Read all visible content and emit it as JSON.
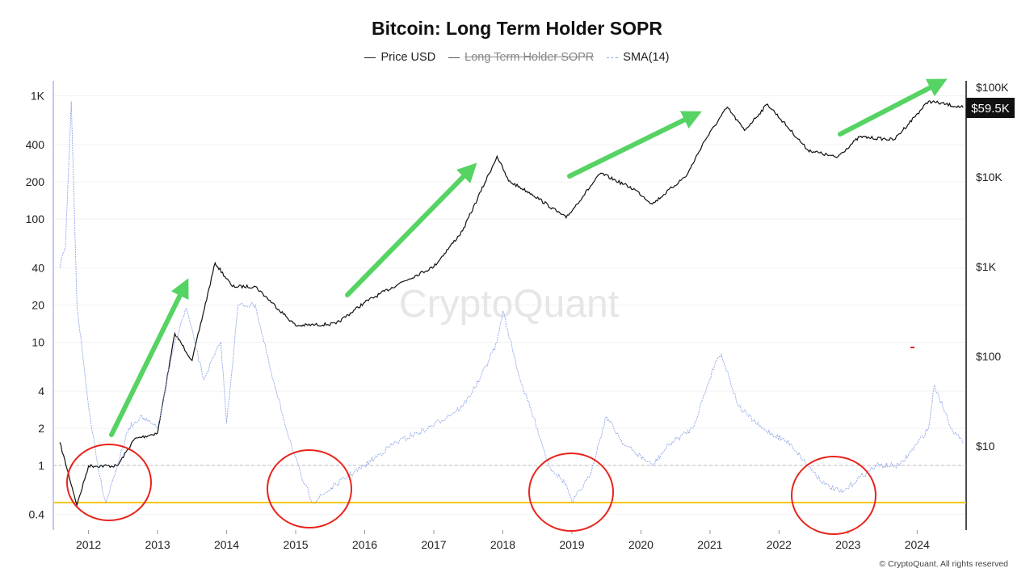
{
  "chart_data": {
    "type": "line",
    "title": "Bitcoin: Long Term Holder SOPR",
    "legend": [
      {
        "name": "Price USD",
        "color": "#111111",
        "visible": true
      },
      {
        "name": "Long Term Holder SOPR",
        "color": "#555555",
        "visible": false
      },
      {
        "name": "SMA(14)",
        "color": "#8fa7e8",
        "visible": true
      }
    ],
    "legend_placement": "top-center",
    "x_ticks": [
      "2012",
      "2013",
      "2014",
      "2015",
      "2016",
      "2017",
      "2018",
      "2019",
      "2020",
      "2021",
      "2022",
      "2023",
      "2024"
    ],
    "left_axis": {
      "scale": "log",
      "ticks": [
        "0.4",
        "1",
        "2",
        "4",
        "10",
        "20",
        "40",
        "100",
        "200",
        "400",
        "1K"
      ],
      "tick_values": [
        0.4,
        1,
        2,
        4,
        10,
        20,
        40,
        100,
        200,
        400,
        1000
      ],
      "range": [
        0.33,
        1250
      ]
    },
    "right_axis": {
      "scale": "log",
      "ticks": [
        "$10",
        "$100",
        "$1K",
        "$10K",
        "$100K"
      ],
      "tick_values": [
        10,
        100,
        1000,
        10000,
        100000
      ],
      "range": [
        1.6,
        115000
      ]
    },
    "current_price_label": "$59.5K",
    "reference_lines": [
      {
        "value": 1,
        "axis": "left",
        "style": "dashed",
        "color": "#bbbbbb"
      },
      {
        "value": 0.5,
        "axis": "left",
        "style": "solid",
        "color": "#f5c518"
      }
    ],
    "series": [
      {
        "name": "Price USD",
        "axis": "right",
        "color": "#111111",
        "x": [
          "2011-08",
          "2011-11",
          "2012-01",
          "2012-06",
          "2012-09",
          "2013-01",
          "2013-04",
          "2013-07",
          "2013-11",
          "2014-02",
          "2014-06",
          "2015-01",
          "2015-08",
          "2016-01",
          "2016-07",
          "2017-01",
          "2017-06",
          "2017-12",
          "2018-02",
          "2018-06",
          "2018-12",
          "2019-06",
          "2019-12",
          "2020-03",
          "2020-09",
          "2020-12",
          "2021-04",
          "2021-07",
          "2021-11",
          "2022-06",
          "2022-11",
          "2023-03",
          "2023-09",
          "2024-03",
          "2024-09"
        ],
        "y": [
          11,
          2.2,
          6,
          6,
          12,
          14,
          180,
          90,
          1100,
          600,
          600,
          220,
          230,
          400,
          650,
          1000,
          2500,
          17000,
          9000,
          6500,
          3500,
          11000,
          7200,
          5000,
          10500,
          25000,
          60000,
          33000,
          65000,
          20000,
          16500,
          28000,
          26000,
          70000,
          59500
        ]
      },
      {
        "name": "SMA(14)",
        "axis": "left",
        "color": "#8fa7e8",
        "x": [
          "2011-08",
          "2011-09",
          "2011-10",
          "2011-11",
          "2012-01",
          "2012-03",
          "2012-04",
          "2012-06",
          "2012-08",
          "2012-10",
          "2013-01",
          "2013-04",
          "2013-06",
          "2013-09",
          "2013-12",
          "2014-01",
          "2014-03",
          "2014-06",
          "2014-09",
          "2014-12",
          "2015-02",
          "2015-04",
          "2015-08",
          "2016-01",
          "2016-06",
          "2016-12",
          "2017-06",
          "2017-09",
          "2017-12",
          "2018-01",
          "2018-04",
          "2018-07",
          "2018-09",
          "2018-12",
          "2019-01",
          "2019-04",
          "2019-07",
          "2019-10",
          "2020-03",
          "2020-06",
          "2020-10",
          "2021-02",
          "2021-03",
          "2021-06",
          "2021-10",
          "2022-03",
          "2022-06",
          "2022-09",
          "2022-12",
          "2023-03",
          "2023-06",
          "2023-10",
          "2024-01",
          "2024-03",
          "2024-04",
          "2024-07",
          "2024-09"
        ],
        "y": [
          40,
          60,
          900,
          20,
          3,
          0.8,
          0.5,
          1,
          2,
          2.5,
          2,
          10,
          19,
          5,
          10,
          2.2,
          20,
          20,
          5,
          1.6,
          0.8,
          0.5,
          0.7,
          1,
          1.5,
          2,
          3,
          5,
          10,
          18,
          5,
          2,
          1,
          0.7,
          0.5,
          0.8,
          2.5,
          1.5,
          1,
          1.5,
          2,
          7,
          8,
          3,
          2,
          1.5,
          1,
          0.7,
          0.6,
          0.8,
          1,
          1,
          1.5,
          2,
          4.5,
          2,
          1.5
        ]
      }
    ],
    "watermark": "CryptoQuant",
    "footer": "© CryptoQuant. All rights reserved"
  }
}
